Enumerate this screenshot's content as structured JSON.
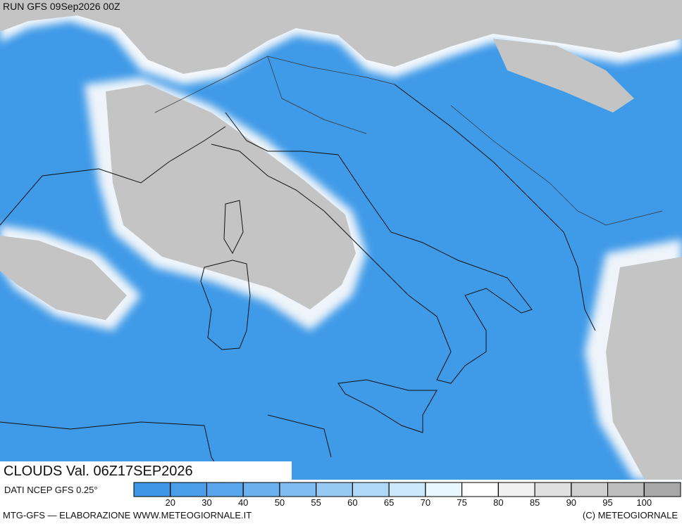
{
  "header": {
    "run": "RUN GFS 09Sep2026 00Z"
  },
  "map": {
    "field_label": "CLOUDS Val. 06Z17SEP2026",
    "source": "DATI NCEP GFS 0.25°"
  },
  "legend": {
    "ticks": [
      20,
      30,
      40,
      50,
      55,
      60,
      65,
      70,
      75,
      80,
      85,
      90,
      95,
      100
    ],
    "colors": [
      "#3d95e6",
      "#4a9de9",
      "#5aa6ec",
      "#6cb0ee",
      "#80bcf1",
      "#96c9f4",
      "#afd7f7",
      "#cbe7fa",
      "#e8f7fd",
      "#ffffff",
      "#f0f0f0",
      "#e0e0e0",
      "#cfcfcf",
      "#bdbdbd",
      "#a8a8a8"
    ]
  },
  "footer": {
    "left": "MTG-GFS — ELABORAZIONE WWW.METEOGIORNALE.IT",
    "right": "(C) METEOGIORNALE"
  }
}
